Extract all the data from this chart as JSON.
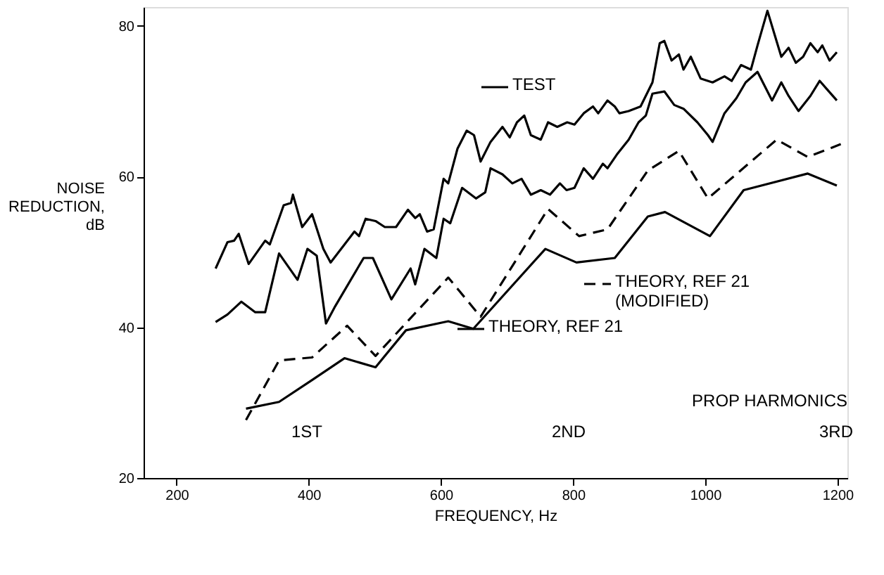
{
  "chart_data": {
    "type": "line",
    "xlabel": "FREQUENCY, Hz",
    "ylabel": "NOISE\nREDUCTION,\ndB",
    "xlim": [
      150,
      1215
    ],
    "ylim": [
      20,
      82.5
    ],
    "xticks": [
      200,
      400,
      600,
      800,
      1000,
      1200
    ],
    "yticks": [
      20,
      40,
      60,
      80
    ],
    "grid": false,
    "legend": "center",
    "marker": "none",
    "series": [
      {
        "name": "TEST",
        "color": "#000000",
        "line_style": "solid",
        "x": [
          259,
          277,
          287,
          294,
          309,
          334,
          341,
          362,
          373,
          376,
          390,
          405,
          422,
          433,
          469,
          476,
          486,
          501,
          515,
          532,
          550,
          561,
          568,
          579,
          589,
          604,
          611,
          625,
          639,
          650,
          660,
          675,
          693,
          704,
          715,
          726,
          736,
          751,
          762,
          776,
          791,
          802,
          816,
          830,
          838,
          852,
          863,
          870,
          884,
          902,
          920,
          931,
          938,
          949,
          960,
          967,
          978,
          993,
          1011,
          1029,
          1040,
          1054,
          1069,
          1079,
          1094,
          1105,
          1115,
          1126,
          1137,
          1148,
          1159,
          1170,
          1177,
          1188,
          1199
        ],
        "values": [
          47.8,
          51.3,
          51.5,
          52.4,
          48.4,
          51.5,
          51,
          56.2,
          56.5,
          57.6,
          53.3,
          55,
          50.4,
          48.6,
          52.7,
          52.1,
          54.4,
          54.1,
          53.3,
          53.3,
          55.6,
          54.5,
          55,
          52.7,
          53,
          59.7,
          59.1,
          63.7,
          66.1,
          65.5,
          62,
          64.6,
          66.6,
          65.2,
          67.2,
          68.1,
          65.5,
          64.9,
          67.2,
          66.6,
          67.2,
          66.9,
          68.4,
          69.3,
          68.4,
          70.1,
          69.3,
          68.4,
          68.7,
          69.3,
          72.5,
          77.7,
          78,
          75.4,
          76.2,
          74.2,
          75.9,
          73,
          72.5,
          73.3,
          72.7,
          74.8,
          74.2,
          77.4,
          82,
          78.8,
          75.9,
          77.1,
          75.1,
          75.9,
          77.7,
          76.5,
          77.4,
          75.4,
          76.5
        ]
      },
      {
        "color": "#000000",
        "line_style": "solid",
        "x": [
          259,
          277,
          298,
          319,
          334,
          355,
          383,
          398,
          412,
          426,
          440,
          483,
          497,
          525,
          554,
          561,
          575,
          593,
          604,
          614,
          632,
          653,
          667,
          675,
          693,
          708,
          722,
          736,
          751,
          765,
          780,
          790,
          802,
          816,
          830,
          845,
          852,
          866,
          884,
          899,
          910,
          920,
          938,
          953,
          967,
          988,
          1004,
          1011,
          1029,
          1047,
          1061,
          1079,
          1101,
          1115,
          1126,
          1141,
          1159,
          1173,
          1184,
          1199
        ],
        "values": [
          40.7,
          41.7,
          43.4,
          42,
          42,
          49.8,
          46.3,
          50.4,
          49.5,
          40.5,
          42.8,
          49.2,
          49.2,
          43.7,
          47.8,
          45.7,
          50.4,
          49.2,
          54.4,
          53.8,
          58.5,
          57.1,
          57.9,
          61.1,
          60.3,
          59.1,
          59.7,
          57.6,
          58.2,
          57.6,
          59.1,
          58.2,
          58.5,
          61.1,
          59.7,
          61.7,
          61.1,
          62.9,
          64.9,
          67.2,
          68.1,
          71,
          71.3,
          69.5,
          69,
          67.2,
          65.5,
          64.6,
          68.4,
          70.4,
          72.5,
          73.9,
          70.1,
          72.5,
          70.7,
          68.7,
          70.7,
          72.7,
          71.6,
          70.1
        ]
      },
      {
        "name": "THEORY, REF 21\n(MODIFIED)",
        "color": "#000000",
        "line_style": "dashed",
        "x": [
          305,
          355,
          405,
          458,
          501,
          611,
          660,
          762,
          809,
          852,
          913,
          960,
          1004,
          1108,
          1155,
          1205
        ],
        "values": [
          27.7,
          35.6,
          36,
          40.2,
          36.2,
          46.6,
          41.4,
          55.7,
          52.1,
          53,
          60.8,
          63.4,
          57.1,
          64.9,
          62.6,
          64.3
        ]
      },
      {
        "name": "THEORY, REF 21",
        "color": "#000000",
        "line_style": "solid",
        "x": [
          305,
          355,
          405,
          454,
          501,
          547,
          611,
          649,
          758,
          805,
          863,
          913,
          939,
          1007,
          1058,
          1155,
          1199
        ],
        "values": [
          29.2,
          30.1,
          33,
          35.9,
          34.7,
          39.6,
          40.8,
          39.8,
          50.4,
          48.6,
          49.2,
          54.7,
          55.3,
          52.1,
          58.2,
          60.4,
          58.8
        ]
      }
    ],
    "annotations": [
      "PROP HARMONICS",
      "1ST",
      "2ND",
      "3RD"
    ]
  }
}
